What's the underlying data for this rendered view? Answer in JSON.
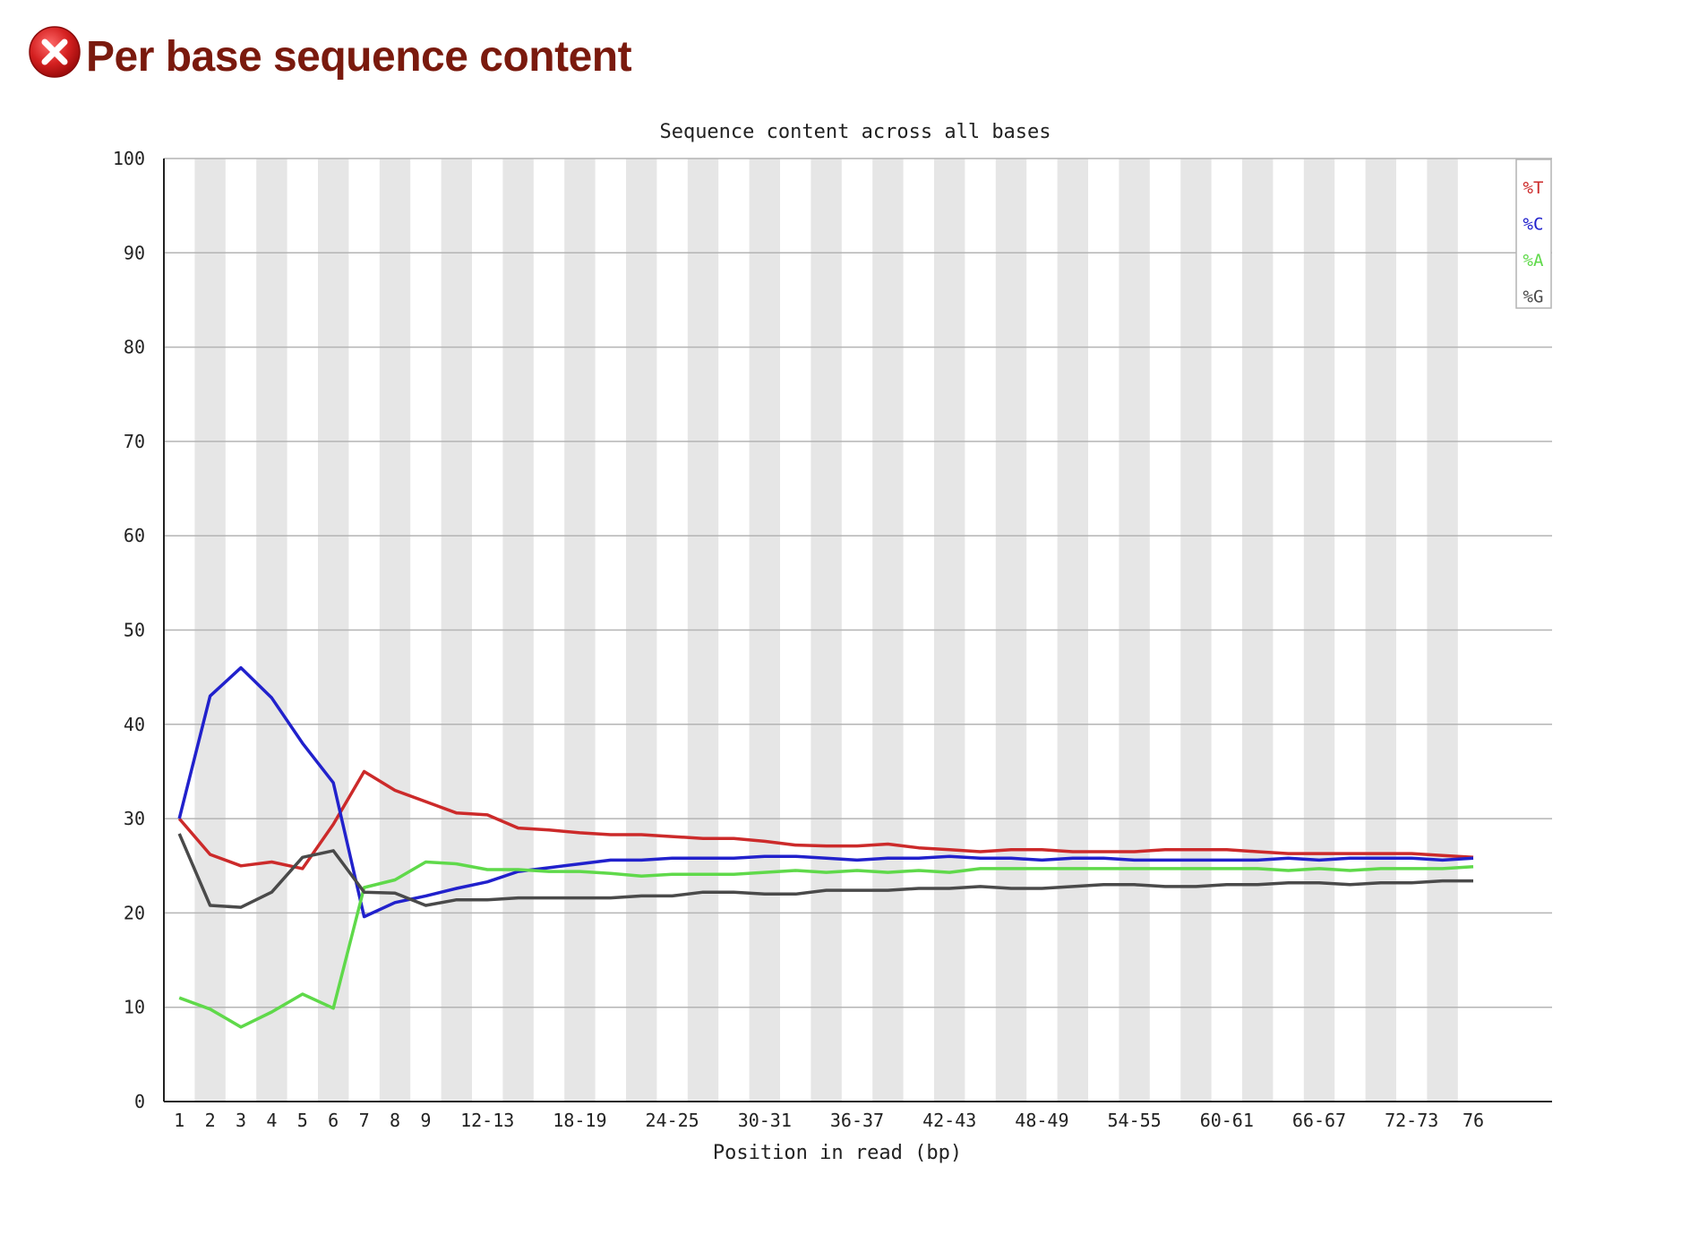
{
  "header": {
    "title": "Per base sequence content",
    "status": "fail",
    "status_icon": "error-x-icon",
    "title_color": "#7a1a0e"
  },
  "chart_data": {
    "type": "line",
    "title": "Sequence content across all bases",
    "xlabel": "Position in read (bp)",
    "ylabel": "",
    "ylim": [
      0,
      100
    ],
    "yticks": [
      0,
      10,
      20,
      30,
      40,
      50,
      60,
      70,
      80,
      90,
      100
    ],
    "grid": true,
    "legend_position": "top-right",
    "categories": [
      "1",
      "2",
      "3",
      "4",
      "5",
      "6",
      "7",
      "8",
      "9",
      "10-11",
      "12-13",
      "14-15",
      "16-17",
      "18-19",
      "20-21",
      "22-23",
      "24-25",
      "26-27",
      "28-29",
      "30-31",
      "32-33",
      "34-35",
      "36-37",
      "38-39",
      "40-41",
      "42-43",
      "44-45",
      "46-47",
      "48-49",
      "50-51",
      "52-53",
      "54-55",
      "56-57",
      "58-59",
      "60-61",
      "62-63",
      "64-65",
      "66-67",
      "68-69",
      "70-71",
      "72-73",
      "74-75",
      "76"
    ],
    "tick_labels": [
      "1",
      "2",
      "3",
      "4",
      "5",
      "6",
      "7",
      "8",
      "9",
      "",
      "12-13",
      "",
      "",
      "18-19",
      "",
      "",
      "24-25",
      "",
      "",
      "30-31",
      "",
      "",
      "36-37",
      "",
      "",
      "42-43",
      "",
      "",
      "48-49",
      "",
      "",
      "54-55",
      "",
      "",
      "60-61",
      "",
      "",
      "66-67",
      "",
      "",
      "72-73",
      "",
      "76"
    ],
    "series": [
      {
        "name": "%T",
        "color": "#cc2a2a",
        "values": [
          30.0,
          26.2,
          25.0,
          25.4,
          24.7,
          29.4,
          35.0,
          33.0,
          31.8,
          30.6,
          30.4,
          29.0,
          28.8,
          28.5,
          28.3,
          28.3,
          28.1,
          27.9,
          27.9,
          27.6,
          27.2,
          27.1,
          27.1,
          27.3,
          26.9,
          26.7,
          26.5,
          26.7,
          26.7,
          26.5,
          26.5,
          26.5,
          26.7,
          26.7,
          26.7,
          26.5,
          26.3,
          26.3,
          26.3,
          26.3,
          26.3,
          26.1,
          25.9
        ]
      },
      {
        "name": "%C",
        "color": "#2121cc",
        "values": [
          30.0,
          43.0,
          46.0,
          42.8,
          38.0,
          33.8,
          19.6,
          21.1,
          21.8,
          22.6,
          23.3,
          24.4,
          24.8,
          25.2,
          25.6,
          25.6,
          25.8,
          25.8,
          25.8,
          26.0,
          26.0,
          25.8,
          25.6,
          25.8,
          25.8,
          26.0,
          25.8,
          25.8,
          25.6,
          25.8,
          25.8,
          25.6,
          25.6,
          25.6,
          25.6,
          25.6,
          25.8,
          25.6,
          25.8,
          25.8,
          25.8,
          25.6,
          25.8
        ]
      },
      {
        "name": "%A",
        "color": "#5fd94a",
        "values": [
          11.0,
          9.8,
          7.9,
          9.5,
          11.4,
          9.9,
          22.7,
          23.5,
          25.4,
          25.2,
          24.6,
          24.6,
          24.4,
          24.4,
          24.2,
          23.9,
          24.1,
          24.1,
          24.1,
          24.3,
          24.5,
          24.3,
          24.5,
          24.3,
          24.5,
          24.3,
          24.7,
          24.7,
          24.7,
          24.7,
          24.7,
          24.7,
          24.7,
          24.7,
          24.7,
          24.7,
          24.5,
          24.7,
          24.5,
          24.7,
          24.7,
          24.7,
          24.9
        ]
      },
      {
        "name": "%G",
        "color": "#4a4a4a",
        "values": [
          28.4,
          20.8,
          20.6,
          22.2,
          25.9,
          26.6,
          22.2,
          22.1,
          20.8,
          21.4,
          21.4,
          21.6,
          21.6,
          21.6,
          21.6,
          21.8,
          21.8,
          22.2,
          22.2,
          22.0,
          22.0,
          22.4,
          22.4,
          22.4,
          22.6,
          22.6,
          22.8,
          22.6,
          22.6,
          22.8,
          23.0,
          23.0,
          22.8,
          22.8,
          23.0,
          23.0,
          23.2,
          23.2,
          23.0,
          23.2,
          23.2,
          23.4,
          23.4
        ]
      }
    ]
  }
}
